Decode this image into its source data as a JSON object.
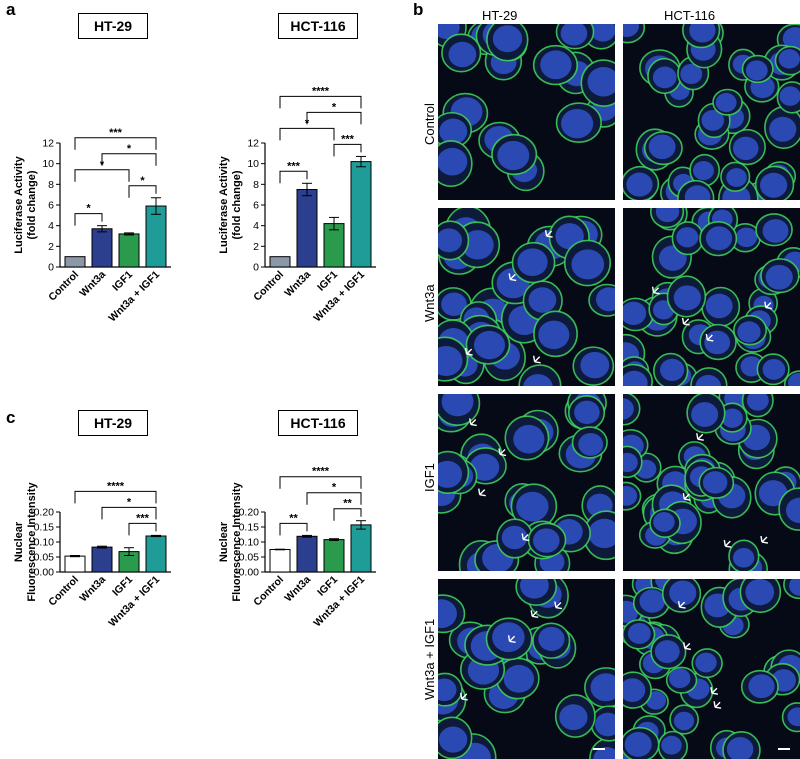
{
  "panels": {
    "a": "a",
    "b": "b",
    "c": "c"
  },
  "colors": {
    "control_a": "#8a98a8",
    "control_c": "#ffffff",
    "wnt3a": "#2b3f8e",
    "igf1": "#2a9a4c",
    "combo": "#1f9c98",
    "membrane": "#3fd85a",
    "nucleus": "#2f4fc0"
  },
  "chart_data": [
    {
      "id": "a-ht29",
      "panel": "a",
      "type": "bar",
      "title": "HT-29",
      "ylabel_line1": "Luciferase Activity",
      "ylabel_line2": "(fold change)",
      "categories": [
        "Control",
        "Wnt3a",
        "IGF1",
        "Wnt3a + IGF1"
      ],
      "values": [
        1.0,
        3.7,
        3.2,
        5.9
      ],
      "errors": [
        0,
        0.3,
        0.1,
        0.8
      ],
      "ylim": [
        0,
        12
      ],
      "yticks": [
        "0",
        "2",
        "4",
        "6",
        "8",
        "10",
        "12"
      ],
      "ytick_values": [
        0,
        2,
        4,
        6,
        8,
        10,
        12
      ],
      "significance": [
        {
          "from": 0,
          "to": 1,
          "label": "*"
        },
        {
          "from": 2,
          "to": 3,
          "label": "*"
        },
        {
          "from": 0,
          "to": 2,
          "label": "*"
        },
        {
          "from": 1,
          "to": 3,
          "label": "*"
        },
        {
          "from": 0,
          "to": 3,
          "label": "***"
        }
      ]
    },
    {
      "id": "a-hct116",
      "panel": "a",
      "type": "bar",
      "title": "HCT-116",
      "ylabel_line1": "Luciferase Activity",
      "ylabel_line2": "(fold change)",
      "categories": [
        "Control",
        "Wnt3a",
        "IGF1",
        "Wnt3a + IGF1"
      ],
      "values": [
        1.0,
        7.5,
        4.2,
        10.2
      ],
      "errors": [
        0,
        0.6,
        0.6,
        0.5
      ],
      "ylim": [
        0,
        12
      ],
      "yticks": [
        "0",
        "2",
        "4",
        "6",
        "8",
        "10",
        "12"
      ],
      "ytick_values": [
        0,
        2,
        4,
        6,
        8,
        10,
        12
      ],
      "significance": [
        {
          "from": 0,
          "to": 1,
          "label": "***"
        },
        {
          "from": 2,
          "to": 3,
          "label": "***"
        },
        {
          "from": 0,
          "to": 2,
          "label": "*"
        },
        {
          "from": 1,
          "to": 3,
          "label": "*"
        },
        {
          "from": 0,
          "to": 3,
          "label": "****"
        }
      ]
    },
    {
      "id": "c-ht29",
      "panel": "c",
      "type": "bar",
      "title": "HT-29",
      "ylabel_line1": "Nuclear",
      "ylabel_line2": "Fluorescence Intensity",
      "categories": [
        "Control",
        "Wnt3a",
        "IGF1",
        "Wnt3a + IGF1"
      ],
      "values": [
        0.053,
        0.083,
        0.068,
        0.12
      ],
      "errors": [
        0.002,
        0.003,
        0.013,
        0.002
      ],
      "ylim": [
        0,
        0.2
      ],
      "yticks": [
        "0.00",
        "0.05",
        "0.10",
        "0.15",
        "0.20"
      ],
      "ytick_values": [
        0,
        0.05,
        0.1,
        0.15,
        0.2
      ],
      "significance": [
        {
          "from": 2,
          "to": 3,
          "label": "***"
        },
        {
          "from": 1,
          "to": 3,
          "label": "*"
        },
        {
          "from": 0,
          "to": 3,
          "label": "****"
        }
      ]
    },
    {
      "id": "c-hct116",
      "panel": "c",
      "type": "bar",
      "title": "HCT-116",
      "ylabel_line1": "Nuclear",
      "ylabel_line2": "Fluorescence Intensity",
      "categories": [
        "Control",
        "Wnt3a",
        "IGF1",
        "Wnt3a + IGF1"
      ],
      "values": [
        0.075,
        0.119,
        0.108,
        0.157
      ],
      "errors": [
        0.001,
        0.003,
        0.003,
        0.014
      ],
      "ylim": [
        0,
        0.2
      ],
      "yticks": [
        "0.00",
        "0.05",
        "0.10",
        "0.15",
        "0.20"
      ],
      "ytick_values": [
        0,
        0.05,
        0.1,
        0.15,
        0.2
      ],
      "significance": [
        {
          "from": 0,
          "to": 1,
          "label": "**"
        },
        {
          "from": 2,
          "to": 3,
          "label": "**"
        },
        {
          "from": 1,
          "to": 3,
          "label": "*"
        },
        {
          "from": 0,
          "to": 3,
          "label": "****"
        }
      ]
    }
  ],
  "micrographs": {
    "columns": [
      "HT-29",
      "HCT-116"
    ],
    "rows": [
      "Control",
      "Wnt3a",
      "IGF1",
      "Wnt3a + IGF1"
    ]
  }
}
